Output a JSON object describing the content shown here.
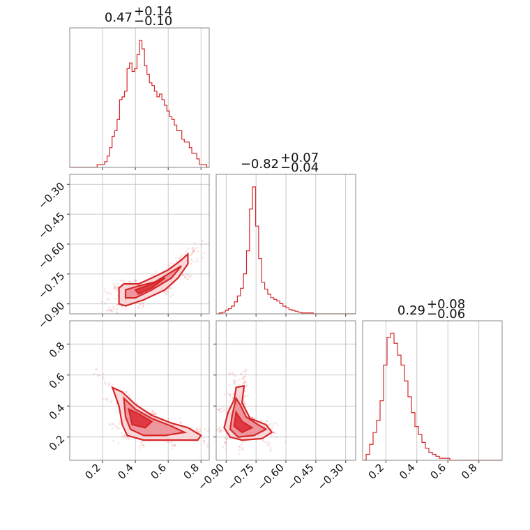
{
  "chart_data": {
    "type": "corner",
    "color": "#d62728",
    "parameters": [
      {
        "title_median": "0.47",
        "title_plus": "+0.14",
        "title_minus": "−0.10",
        "range": [
          0.0,
          0.85
        ],
        "ticks": [
          0.2,
          0.4,
          0.6,
          0.8
        ],
        "tick_labels": [
          "0.2",
          "0.4",
          "0.6",
          "0.8"
        ],
        "hist": {
          "lo": 0.0,
          "hi": 0.85,
          "counts": [
            0,
            0,
            0,
            0,
            0,
            0,
            0,
            0,
            0,
            0,
            0,
            1,
            1,
            1,
            2,
            4,
            7,
            11,
            13,
            17,
            24,
            25,
            27,
            35,
            37,
            34,
            35,
            40,
            45,
            42,
            36,
            33,
            30,
            29,
            27,
            25,
            26,
            24,
            22,
            20,
            18,
            17,
            15,
            13,
            13,
            10,
            9,
            9,
            7,
            5,
            5,
            3,
            1,
            1,
            1,
            0
          ]
        }
      },
      {
        "title_median": "−0.82",
        "title_plus": "+0.07",
        "title_minus": "−0.04",
        "range": [
          -0.95,
          -0.25
        ],
        "ticks": [
          -0.9,
          -0.75,
          -0.6,
          -0.45,
          -0.3
        ],
        "tick_labels": [
          "−0.90",
          "−0.75",
          "−0.60",
          "−0.45",
          "−0.30"
        ],
        "hist": {
          "lo": -0.95,
          "hi": -0.25,
          "counts": [
            0,
            1,
            2,
            4,
            6,
            9,
            14,
            21,
            30,
            47,
            74,
            123,
            149,
            103,
            65,
            37,
            29,
            23,
            19,
            17,
            15,
            12,
            9,
            7,
            5,
            4,
            3,
            2,
            1,
            1,
            1,
            1,
            0,
            0,
            0,
            0,
            0,
            0,
            0,
            0,
            0,
            0,
            0,
            0,
            0,
            0
          ]
        }
      },
      {
        "title_median": "0.29",
        "title_plus": "+0.08",
        "title_minus": "−0.06",
        "range": [
          0.05,
          0.95
        ],
        "ticks": [
          0.2,
          0.4,
          0.6,
          0.8
        ],
        "tick_labels": [
          "0.2",
          "0.4",
          "0.6",
          "0.8"
        ],
        "hist": {
          "lo": 0.05,
          "hi": 0.95,
          "counts": [
            0,
            3,
            8,
            14,
            20,
            30,
            48,
            62,
            64,
            59,
            53,
            48,
            40,
            32,
            24,
            17,
            13,
            9,
            6,
            4,
            3,
            2,
            1,
            1,
            1,
            0,
            0,
            0,
            0,
            0,
            0,
            0,
            0,
            0,
            0,
            0,
            0,
            0,
            0,
            0
          ]
        }
      }
    ],
    "pair_panels": [
      {
        "x_param": 0,
        "y_param": 1,
        "cloud": {
          "lo": -0.85,
          "curve_y0": -0.86,
          "curve_k": 0.75,
          "x_from": 0.28,
          "x_to": 0.85,
          "spread": 0.025
        },
        "contours": [
          [
            [
              0.3,
              -0.82
            ],
            [
              0.33,
              -0.8
            ],
            [
              0.42,
              -0.8
            ],
            [
              0.5,
              -0.77
            ],
            [
              0.6,
              -0.73
            ],
            [
              0.68,
              -0.68
            ],
            [
              0.72,
              -0.65
            ],
            [
              0.72,
              -0.7
            ],
            [
              0.66,
              -0.77
            ],
            [
              0.58,
              -0.83
            ],
            [
              0.45,
              -0.88
            ],
            [
              0.34,
              -0.91
            ],
            [
              0.3,
              -0.9
            ],
            [
              0.3,
              -0.86
            ]
          ],
          [
            [
              0.34,
              -0.83
            ],
            [
              0.42,
              -0.81
            ],
            [
              0.52,
              -0.79
            ],
            [
              0.62,
              -0.74
            ],
            [
              0.68,
              -0.71
            ],
            [
              0.62,
              -0.77
            ],
            [
              0.5,
              -0.83
            ],
            [
              0.4,
              -0.87
            ],
            [
              0.34,
              -0.87
            ]
          ],
          [
            [
              0.4,
              -0.83
            ],
            [
              0.5,
              -0.8
            ],
            [
              0.58,
              -0.77
            ],
            [
              0.5,
              -0.82
            ],
            [
              0.42,
              -0.85
            ]
          ]
        ]
      },
      {
        "x_param": 0,
        "y_param": 2,
        "contours": [
          [
            [
              0.26,
              0.52
            ],
            [
              0.32,
              0.49
            ],
            [
              0.4,
              0.41
            ],
            [
              0.5,
              0.34
            ],
            [
              0.62,
              0.29
            ],
            [
              0.72,
              0.26
            ],
            [
              0.8,
              0.21
            ],
            [
              0.78,
              0.18
            ],
            [
              0.6,
              0.18
            ],
            [
              0.45,
              0.18
            ],
            [
              0.35,
              0.21
            ],
            [
              0.32,
              0.28
            ],
            [
              0.3,
              0.4
            ]
          ],
          [
            [
              0.33,
              0.45
            ],
            [
              0.4,
              0.38
            ],
            [
              0.5,
              0.32
            ],
            [
              0.62,
              0.27
            ],
            [
              0.7,
              0.23
            ],
            [
              0.58,
              0.21
            ],
            [
              0.45,
              0.21
            ],
            [
              0.37,
              0.25
            ],
            [
              0.34,
              0.33
            ]
          ],
          [
            [
              0.36,
              0.38
            ],
            [
              0.42,
              0.35
            ],
            [
              0.5,
              0.3
            ],
            [
              0.46,
              0.26
            ],
            [
              0.38,
              0.28
            ]
          ]
        ]
      },
      {
        "x_param": 1,
        "y_param": 2,
        "contours": [
          [
            [
              -0.85,
              0.52
            ],
            [
              -0.81,
              0.53
            ],
            [
              -0.82,
              0.42
            ],
            [
              -0.78,
              0.32
            ],
            [
              -0.7,
              0.28
            ],
            [
              -0.67,
              0.23
            ],
            [
              -0.72,
              0.19
            ],
            [
              -0.82,
              0.18
            ],
            [
              -0.88,
              0.2
            ],
            [
              -0.91,
              0.26
            ],
            [
              -0.89,
              0.36
            ],
            [
              -0.86,
              0.44
            ]
          ],
          [
            [
              -0.85,
              0.45
            ],
            [
              -0.83,
              0.41
            ],
            [
              -0.8,
              0.33
            ],
            [
              -0.74,
              0.28
            ],
            [
              -0.7,
              0.25
            ],
            [
              -0.76,
              0.21
            ],
            [
              -0.84,
              0.2
            ],
            [
              -0.88,
              0.25
            ],
            [
              -0.87,
              0.34
            ]
          ],
          [
            [
              -0.85,
              0.36
            ],
            [
              -0.82,
              0.3
            ],
            [
              -0.77,
              0.26
            ],
            [
              -0.82,
              0.23
            ],
            [
              -0.86,
              0.27
            ]
          ]
        ]
      }
    ]
  }
}
